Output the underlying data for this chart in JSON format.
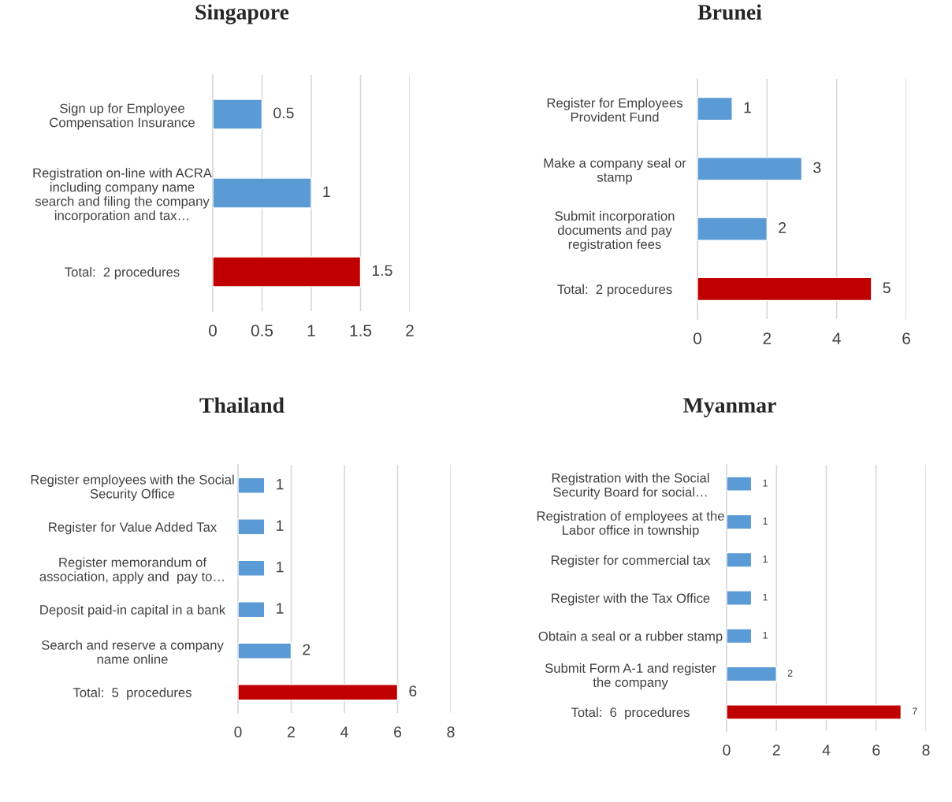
{
  "chart_data": [
    {
      "type": "bar",
      "orientation": "horizontal",
      "title": "Singapore",
      "categories": [
        "Sign up for Employee\nCompensation Insurance",
        "Registration on-line with ACRA\nincluding company name\nsearch and filing the company\nincorporation and tax…",
        "Total:  2 procedures"
      ],
      "values": [
        0.5,
        1,
        1.5
      ],
      "colors": [
        "#5b9bd5",
        "#5b9bd5",
        "#c00000"
      ],
      "xlim": [
        0,
        2
      ],
      "xticks": [
        0,
        0.5,
        1,
        1.5,
        2
      ],
      "grid": "x",
      "data_labels": true,
      "legend": false
    },
    {
      "type": "bar",
      "orientation": "horizontal",
      "title": "Brunei",
      "categories": [
        "Register for Employees\nProvident Fund",
        "Make a company seal or\nstamp",
        "Submit incorporation\ndocuments and pay\nregistration fees",
        "Total:  2 procedures"
      ],
      "values": [
        1,
        3,
        2,
        5
      ],
      "colors": [
        "#5b9bd5",
        "#5b9bd5",
        "#5b9bd5",
        "#c00000"
      ],
      "xlim": [
        0,
        6
      ],
      "xticks": [
        0,
        2,
        4,
        6
      ],
      "grid": "x",
      "data_labels": true,
      "legend": false
    },
    {
      "type": "bar",
      "orientation": "horizontal",
      "title": "Thailand",
      "categories": [
        "Register employees with the Social\nSecurity Office",
        "Register for Value Added Tax",
        "Register memorandum of\nassociation, apply and  pay to…",
        "Deposit paid-in capital in a bank",
        "Search and reserve a company\nname online",
        "Total:  5  procedures"
      ],
      "values": [
        1,
        1,
        1,
        1,
        2,
        6
      ],
      "colors": [
        "#5b9bd5",
        "#5b9bd5",
        "#5b9bd5",
        "#5b9bd5",
        "#5b9bd5",
        "#c00000"
      ],
      "xlim": [
        0,
        8
      ],
      "xticks": [
        0,
        2,
        4,
        6,
        8
      ],
      "grid": "x",
      "data_labels": true,
      "legend": false
    },
    {
      "type": "bar",
      "orientation": "horizontal",
      "title": "Myanmar",
      "categories": [
        "Registration with the Social\nSecurity Board for social…",
        "Registration of employees at the\nLabor office in township",
        "Register for commercial tax",
        "Register with the Tax Office",
        "Obtain a seal or a rubber stamp",
        "Submit Form A-1 and register\nthe company",
        "Total:  6  procedures"
      ],
      "values": [
        1,
        1,
        1,
        1,
        1,
        2,
        7
      ],
      "colors": [
        "#5b9bd5",
        "#5b9bd5",
        "#5b9bd5",
        "#5b9bd5",
        "#5b9bd5",
        "#5b9bd5",
        "#c00000"
      ],
      "xlim": [
        0,
        8
      ],
      "xticks": [
        0,
        2,
        4,
        6,
        8
      ],
      "grid": "x",
      "data_labels": true,
      "legend": false
    }
  ]
}
